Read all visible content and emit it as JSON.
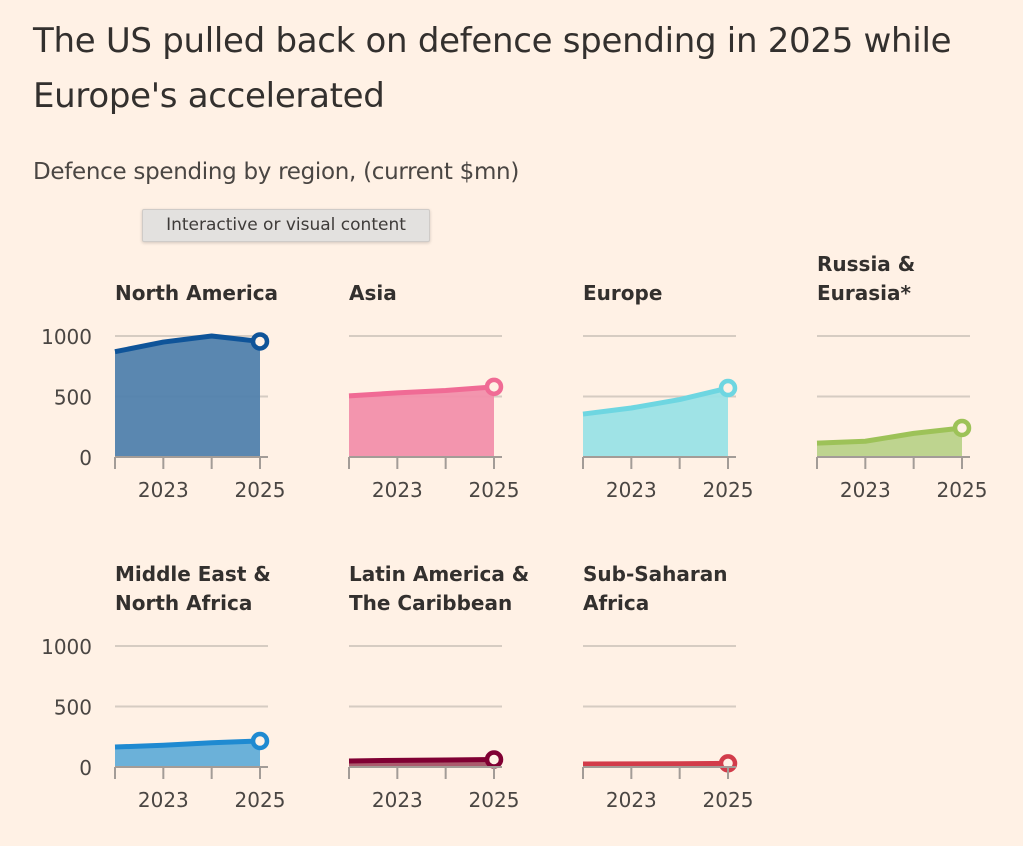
{
  "header": {
    "title": "The US pulled back on defence spending in 2025 while Europe's accelerated",
    "subtitle": "Defence spending by region, (current $mn)"
  },
  "tooltip": {
    "text": "Interactive or visual content"
  },
  "chart_data": {
    "type": "area",
    "title": "The US pulled back on defence spending in 2025 while Europe's accelerated",
    "subtitle": "Defence spending by region, (current $mn)",
    "layout": "small-multiples",
    "xlabel": "",
    "ylabel": "",
    "x": [
      2022,
      2023,
      2024,
      2025
    ],
    "x_tick_labels": [
      "2023",
      "2025"
    ],
    "y_ticks": [
      0,
      500,
      1000
    ],
    "y_tick_labels": [
      "0",
      "500",
      "1000"
    ],
    "ylim": [
      0,
      1000
    ],
    "grid": true,
    "series": [
      {
        "name": "North America",
        "title_lines": [
          "North America"
        ],
        "color": "#0f5499",
        "fill": "#5181ad",
        "values": [
          870,
          950,
          1000,
          955
        ]
      },
      {
        "name": "Asia",
        "title_lines": [
          "Asia"
        ],
        "color": "#f06b95",
        "fill": "#f28fab",
        "values": [
          505,
          530,
          550,
          580
        ]
      },
      {
        "name": "Europe",
        "title_lines": [
          "Europe"
        ],
        "color": "#6ed6e1",
        "fill": "#9ae2e6",
        "values": [
          355,
          405,
          475,
          570
        ]
      },
      {
        "name": "Russia & Eurasia*",
        "title_lines": [
          "Russia &",
          "Eurasia*"
        ],
        "color": "#9dc258",
        "fill": "#bad28a",
        "values": [
          115,
          130,
          195,
          240
        ]
      },
      {
        "name": "Middle East & North Africa",
        "title_lines": [
          "Middle East &",
          "North Africa"
        ],
        "color": "#1f8ad1",
        "fill": "#63add8",
        "values": [
          165,
          180,
          200,
          215
        ]
      },
      {
        "name": "Latin America & The Caribbean",
        "title_lines": [
          "Latin America &",
          "The Caribbean"
        ],
        "color": "#800033",
        "fill": "#a65266",
        "values": [
          50,
          55,
          58,
          62
        ]
      },
      {
        "name": "Sub-Saharan Africa",
        "title_lines": [
          "Sub-Saharan",
          "Africa"
        ],
        "color": "#d23c4a",
        "fill": "#e0838b",
        "values": [
          25,
          26,
          27,
          30
        ]
      }
    ]
  }
}
